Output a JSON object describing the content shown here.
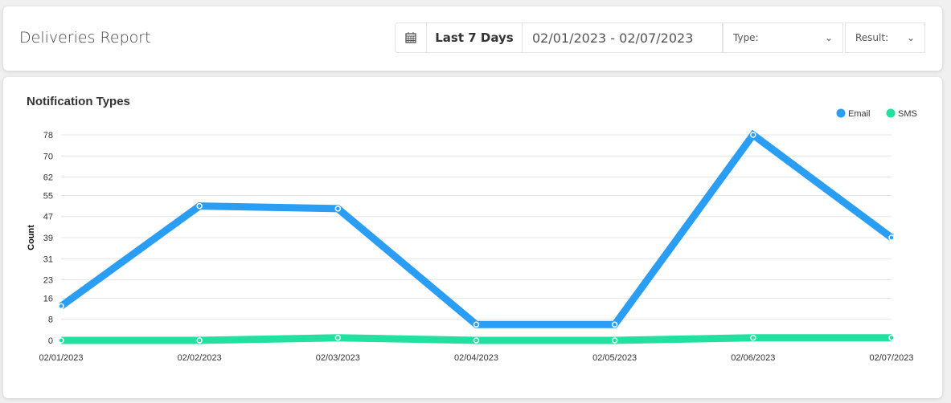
{
  "header": {
    "title": "Deliveries Report",
    "calendar_icon": "calendar-icon",
    "preset": "Last 7 Days",
    "date_range": "02/01/2023 - 02/07/2023",
    "type_label": "Type:",
    "result_label": "Result:"
  },
  "chart_data": {
    "type": "line",
    "title": "Notification Types",
    "ylabel": "Count",
    "xlabel": "",
    "categories": [
      "02/01/2023",
      "02/02/2023",
      "02/03/2023",
      "02/04/2023",
      "02/05/2023",
      "02/06/2023",
      "02/07/2023"
    ],
    "yticks": [
      0,
      8,
      16,
      23,
      31,
      39,
      47,
      55,
      62,
      70,
      78
    ],
    "ylim": [
      0,
      78
    ],
    "grid": true,
    "legend": "top-right",
    "series": [
      {
        "name": "Email",
        "color": "#2a9df4",
        "values": [
          13,
          51,
          50,
          6,
          6,
          78,
          39
        ]
      },
      {
        "name": "SMS",
        "color": "#22e0a0",
        "values": [
          0,
          0,
          1,
          0,
          0,
          1,
          1
        ]
      }
    ]
  }
}
